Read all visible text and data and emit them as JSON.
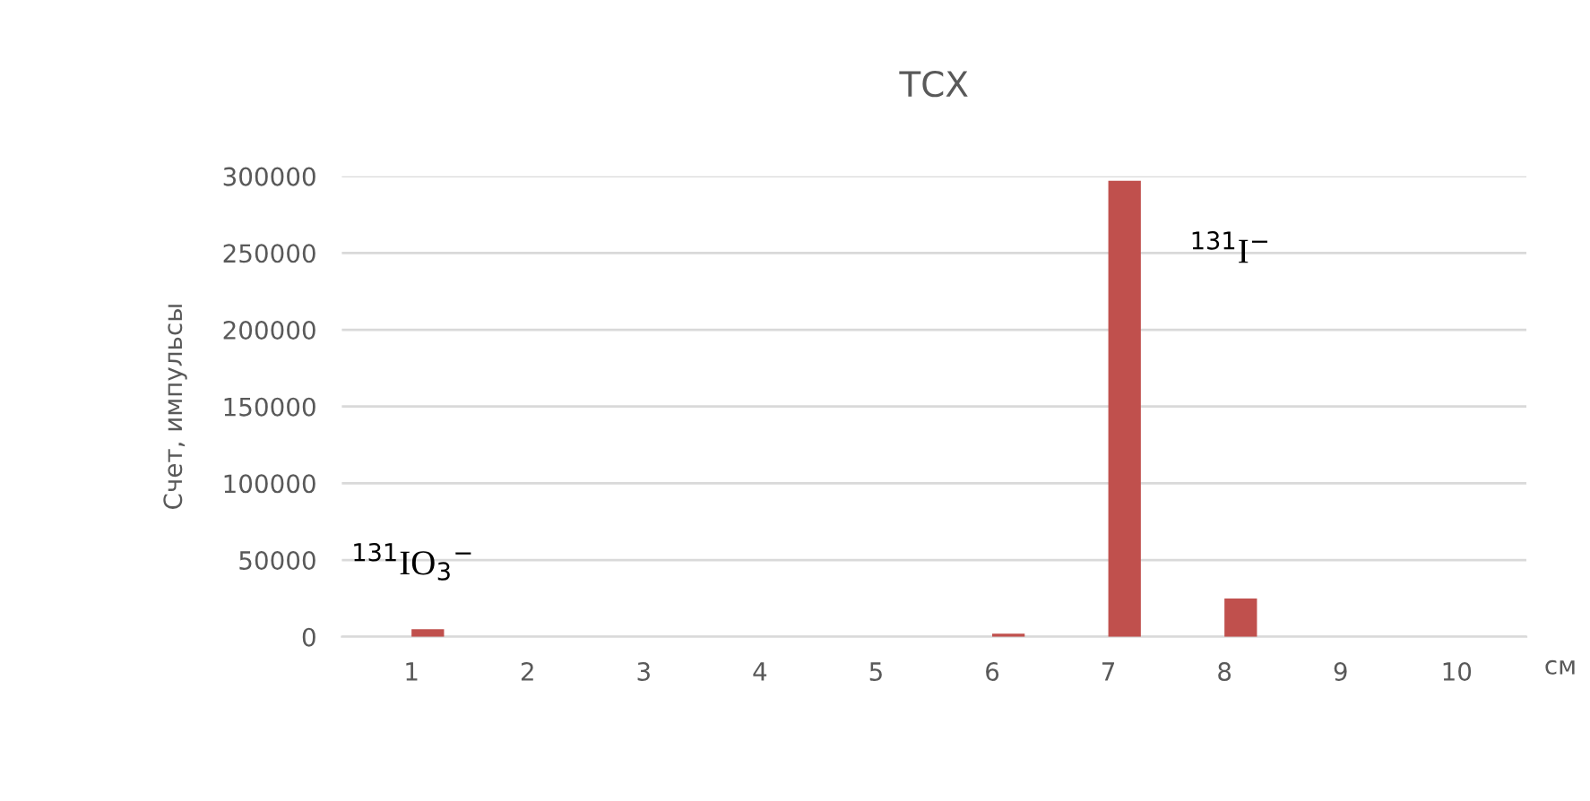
{
  "chart_data": {
    "type": "bar",
    "title": "ТСХ",
    "ylabel": "Счет, импульсы",
    "xlabel": "см",
    "categories": [
      "1",
      "2",
      "3",
      "4",
      "5",
      "6",
      "7",
      "8",
      "9",
      "10"
    ],
    "series": [
      {
        "color": "#4f81bd",
        "values": [
          0,
          0,
          0,
          0,
          0,
          0,
          0,
          0,
          0,
          0
        ]
      },
      {
        "color": "#c0504d",
        "values": [
          5000,
          0,
          0,
          0,
          0,
          2000,
          297000,
          25000,
          0,
          0
        ]
      }
    ],
    "ylim": [
      0,
      300000
    ],
    "yticks": [
      0,
      50000,
      100000,
      150000,
      200000,
      250000,
      300000
    ],
    "grid": "y",
    "annotations": [
      "$^{131}$IO$_{3}$$^{−}$",
      "$^{131}$I$^{−}$"
    ]
  }
}
